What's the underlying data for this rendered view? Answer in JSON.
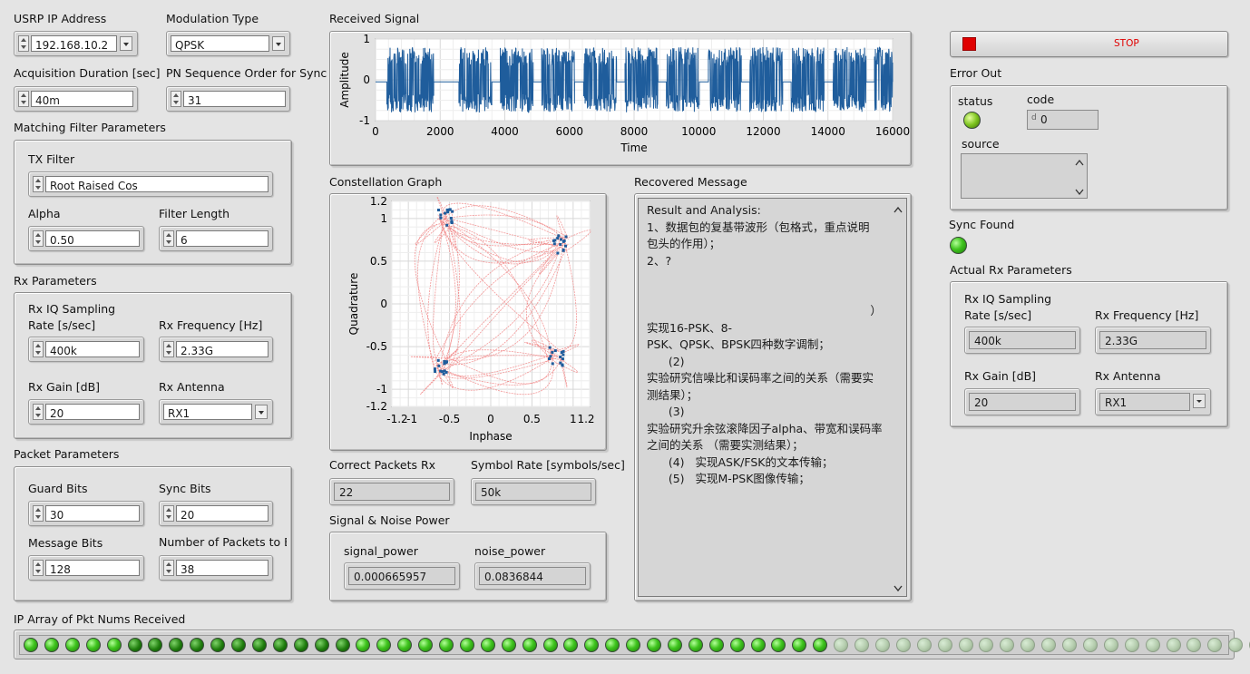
{
  "usrp_ip": {
    "label": "USRP IP Address",
    "value": "192.168.10.2"
  },
  "modulation": {
    "label": "Modulation Type",
    "value": "QPSK"
  },
  "acq_duration": {
    "label": "Acquisition Duration [sec]",
    "value": "40m"
  },
  "pn_order": {
    "label": "PN Sequence Order for Sync",
    "value": "31"
  },
  "matching_filter": {
    "label": "Matching Filter Parameters",
    "tx_filter": {
      "label": "TX Filter",
      "value": "Root Raised Cos"
    },
    "alpha": {
      "label": "Alpha",
      "value": "0.50"
    },
    "filter_length": {
      "label": "Filter Length",
      "value": "6"
    }
  },
  "rx_params": {
    "label": "Rx Parameters",
    "sampling_label_1": "Rx IQ Sampling",
    "sampling_label_2": "Rate [s/sec]",
    "sampling_value": "400k",
    "freq": {
      "label": "Rx Frequency [Hz]",
      "value": "2.33G"
    },
    "gain": {
      "label": "Rx Gain [dB]",
      "value": "20"
    },
    "antenna": {
      "label": "Rx Antenna",
      "value": "RX1"
    }
  },
  "packet_params": {
    "label": "Packet Parameters",
    "guard": {
      "label": "Guard Bits",
      "value": "30"
    },
    "sync": {
      "label": "Sync Bits",
      "value": "20"
    },
    "message": {
      "label": "Message Bits",
      "value": "128"
    },
    "num_packets": {
      "label": "Number of Packets to E",
      "value": "38"
    }
  },
  "received_signal": {
    "title": "Received Signal",
    "xlabel": "Time",
    "ylabel": "Amplitude",
    "xticks": [
      "0",
      "2000",
      "4000",
      "6000",
      "8000",
      "10000",
      "12000",
      "14000",
      "16000"
    ],
    "yticks": [
      "1",
      "0",
      "-1"
    ]
  },
  "constellation": {
    "title": "Constellation Graph",
    "xlabel": "Inphase",
    "ylabel": "Quadrature",
    "xticks": [
      "-1.2",
      "-1",
      "-0.5",
      "0",
      "0.5",
      "1",
      "1.2"
    ],
    "yticks": [
      "1.2",
      "1",
      "0.5",
      "0",
      "-0.5",
      "-1",
      "-1.2"
    ]
  },
  "recovered_message": {
    "title": "Recovered Message",
    "lines": [
      "Result and Analysis:",
      "1、数据包的复基带波形（包格式，重点说明",
      "包头的作用）；",
      "2、?",
      "",
      "",
      "                                                              ）",
      "实现16-PSK、8-",
      "PSK、QPSK、BPSK四种数字调制；",
      "      (2)",
      "实验研究信噪比和误码率之间的关系（需要实",
      "测结果）；",
      "      (3)",
      "实验研究升余弦滚降因子alpha、带宽和误码率",
      "之间的关系 （需要实测结果）；",
      "      (4)   实现ASK/FSK的文本传输；",
      "      (5)   实现M-PSK图像传输；"
    ]
  },
  "correct_packets": {
    "label": "Correct Packets Rx",
    "value": "22"
  },
  "symbol_rate": {
    "label": "Symbol Rate [symbols/sec]",
    "value": "50k"
  },
  "signal_noise": {
    "label": "Signal & Noise Power",
    "signal": {
      "label": "signal_power",
      "value": "0.000665957"
    },
    "noise": {
      "label": "noise_power",
      "value": "0.0836844"
    }
  },
  "stop_button": {
    "label": "STOP"
  },
  "error_out": {
    "label": "Error Out",
    "status_label": "status",
    "code_label": "code",
    "code_value": "0",
    "source_label": "source"
  },
  "sync_found": {
    "label": "Sync Found",
    "on": true
  },
  "actual_rx": {
    "label": "Actual Rx Parameters",
    "sampling_label_1": "Rx IQ Sampling",
    "sampling_label_2": "Rate [s/sec]",
    "sampling_value": "400k",
    "freq": {
      "label": "Rx Frequency [Hz]",
      "value": "2.33G"
    },
    "gain": {
      "label": "Rx Gain [dB]",
      "value": "20"
    },
    "antenna": {
      "label": "Rx Antenna",
      "value": "RX1"
    }
  },
  "pkt_array": {
    "label": "IP Array of Pkt Nums Received",
    "states": [
      1,
      1,
      1,
      1,
      1,
      2,
      2,
      2,
      2,
      2,
      2,
      2,
      2,
      2,
      2,
      2,
      1,
      1,
      1,
      1,
      1,
      1,
      1,
      1,
      1,
      1,
      1,
      1,
      1,
      1,
      1,
      1,
      1,
      1,
      1,
      1,
      1,
      1,
      1,
      0,
      0,
      0,
      0,
      0,
      0,
      0,
      0,
      0,
      0,
      0,
      0,
      0,
      0,
      0,
      0,
      0,
      0,
      0,
      0,
      0,
      0
    ]
  },
  "colors": {
    "signal": "#1f5d9c",
    "constellation_trace": "#f08080",
    "constellation_points": "#1f5d9c",
    "stop_red": "#e00000"
  }
}
